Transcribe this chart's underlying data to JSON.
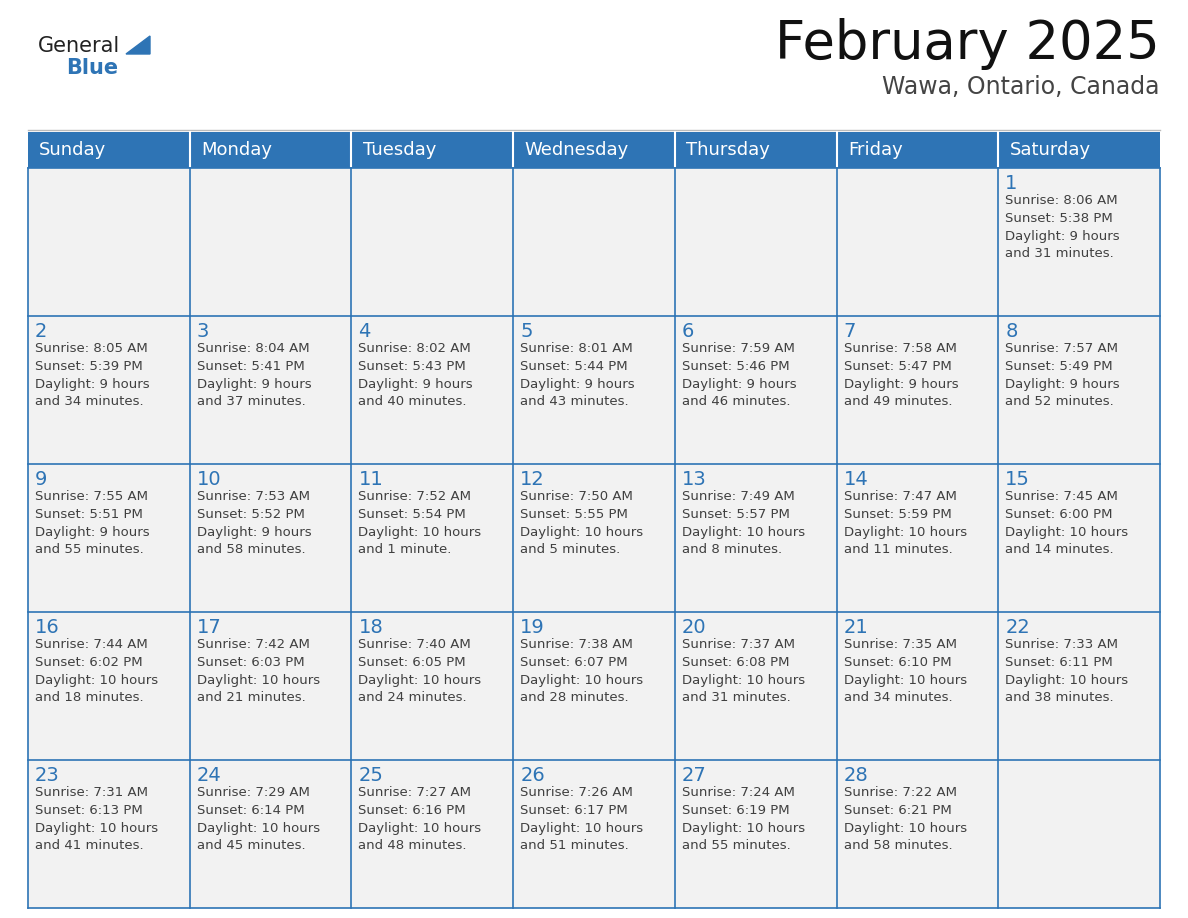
{
  "title": "February 2025",
  "subtitle": "Wawa, Ontario, Canada",
  "header_bg_color": "#2e74b5",
  "header_text_color": "#ffffff",
  "cell_bg_color": "#f2f2f2",
  "cell_border_color": "#2e74b5",
  "day_number_color": "#2e74b5",
  "detail_text_color": "#404040",
  "bg_color": "#ffffff",
  "days_of_week": [
    "Sunday",
    "Monday",
    "Tuesday",
    "Wednesday",
    "Thursday",
    "Friday",
    "Saturday"
  ],
  "calendar_data": [
    [
      null,
      null,
      null,
      null,
      null,
      null,
      {
        "day": 1,
        "sunrise": "8:06 AM",
        "sunset": "5:38 PM",
        "daylight_line1": "Daylight: 9 hours",
        "daylight_line2": "and 31 minutes."
      }
    ],
    [
      {
        "day": 2,
        "sunrise": "8:05 AM",
        "sunset": "5:39 PM",
        "daylight_line1": "Daylight: 9 hours",
        "daylight_line2": "and 34 minutes."
      },
      {
        "day": 3,
        "sunrise": "8:04 AM",
        "sunset": "5:41 PM",
        "daylight_line1": "Daylight: 9 hours",
        "daylight_line2": "and 37 minutes."
      },
      {
        "day": 4,
        "sunrise": "8:02 AM",
        "sunset": "5:43 PM",
        "daylight_line1": "Daylight: 9 hours",
        "daylight_line2": "and 40 minutes."
      },
      {
        "day": 5,
        "sunrise": "8:01 AM",
        "sunset": "5:44 PM",
        "daylight_line1": "Daylight: 9 hours",
        "daylight_line2": "and 43 minutes."
      },
      {
        "day": 6,
        "sunrise": "7:59 AM",
        "sunset": "5:46 PM",
        "daylight_line1": "Daylight: 9 hours",
        "daylight_line2": "and 46 minutes."
      },
      {
        "day": 7,
        "sunrise": "7:58 AM",
        "sunset": "5:47 PM",
        "daylight_line1": "Daylight: 9 hours",
        "daylight_line2": "and 49 minutes."
      },
      {
        "day": 8,
        "sunrise": "7:57 AM",
        "sunset": "5:49 PM",
        "daylight_line1": "Daylight: 9 hours",
        "daylight_line2": "and 52 minutes."
      }
    ],
    [
      {
        "day": 9,
        "sunrise": "7:55 AM",
        "sunset": "5:51 PM",
        "daylight_line1": "Daylight: 9 hours",
        "daylight_line2": "and 55 minutes."
      },
      {
        "day": 10,
        "sunrise": "7:53 AM",
        "sunset": "5:52 PM",
        "daylight_line1": "Daylight: 9 hours",
        "daylight_line2": "and 58 minutes."
      },
      {
        "day": 11,
        "sunrise": "7:52 AM",
        "sunset": "5:54 PM",
        "daylight_line1": "Daylight: 10 hours",
        "daylight_line2": "and 1 minute."
      },
      {
        "day": 12,
        "sunrise": "7:50 AM",
        "sunset": "5:55 PM",
        "daylight_line1": "Daylight: 10 hours",
        "daylight_line2": "and 5 minutes."
      },
      {
        "day": 13,
        "sunrise": "7:49 AM",
        "sunset": "5:57 PM",
        "daylight_line1": "Daylight: 10 hours",
        "daylight_line2": "and 8 minutes."
      },
      {
        "day": 14,
        "sunrise": "7:47 AM",
        "sunset": "5:59 PM",
        "daylight_line1": "Daylight: 10 hours",
        "daylight_line2": "and 11 minutes."
      },
      {
        "day": 15,
        "sunrise": "7:45 AM",
        "sunset": "6:00 PM",
        "daylight_line1": "Daylight: 10 hours",
        "daylight_line2": "and 14 minutes."
      }
    ],
    [
      {
        "day": 16,
        "sunrise": "7:44 AM",
        "sunset": "6:02 PM",
        "daylight_line1": "Daylight: 10 hours",
        "daylight_line2": "and 18 minutes."
      },
      {
        "day": 17,
        "sunrise": "7:42 AM",
        "sunset": "6:03 PM",
        "daylight_line1": "Daylight: 10 hours",
        "daylight_line2": "and 21 minutes."
      },
      {
        "day": 18,
        "sunrise": "7:40 AM",
        "sunset": "6:05 PM",
        "daylight_line1": "Daylight: 10 hours",
        "daylight_line2": "and 24 minutes."
      },
      {
        "day": 19,
        "sunrise": "7:38 AM",
        "sunset": "6:07 PM",
        "daylight_line1": "Daylight: 10 hours",
        "daylight_line2": "and 28 minutes."
      },
      {
        "day": 20,
        "sunrise": "7:37 AM",
        "sunset": "6:08 PM",
        "daylight_line1": "Daylight: 10 hours",
        "daylight_line2": "and 31 minutes."
      },
      {
        "day": 21,
        "sunrise": "7:35 AM",
        "sunset": "6:10 PM",
        "daylight_line1": "Daylight: 10 hours",
        "daylight_line2": "and 34 minutes."
      },
      {
        "day": 22,
        "sunrise": "7:33 AM",
        "sunset": "6:11 PM",
        "daylight_line1": "Daylight: 10 hours",
        "daylight_line2": "and 38 minutes."
      }
    ],
    [
      {
        "day": 23,
        "sunrise": "7:31 AM",
        "sunset": "6:13 PM",
        "daylight_line1": "Daylight: 10 hours",
        "daylight_line2": "and 41 minutes."
      },
      {
        "day": 24,
        "sunrise": "7:29 AM",
        "sunset": "6:14 PM",
        "daylight_line1": "Daylight: 10 hours",
        "daylight_line2": "and 45 minutes."
      },
      {
        "day": 25,
        "sunrise": "7:27 AM",
        "sunset": "6:16 PM",
        "daylight_line1": "Daylight: 10 hours",
        "daylight_line2": "and 48 minutes."
      },
      {
        "day": 26,
        "sunrise": "7:26 AM",
        "sunset": "6:17 PM",
        "daylight_line1": "Daylight: 10 hours",
        "daylight_line2": "and 51 minutes."
      },
      {
        "day": 27,
        "sunrise": "7:24 AM",
        "sunset": "6:19 PM",
        "daylight_line1": "Daylight: 10 hours",
        "daylight_line2": "and 55 minutes."
      },
      {
        "day": 28,
        "sunrise": "7:22 AM",
        "sunset": "6:21 PM",
        "daylight_line1": "Daylight: 10 hours",
        "daylight_line2": "and 58 minutes."
      },
      null
    ]
  ],
  "logo_general_color": "#222222",
  "logo_blue_color": "#2e74b5",
  "logo_triangle_color": "#2e74b5",
  "title_fontsize": 38,
  "subtitle_fontsize": 17,
  "dow_fontsize": 13,
  "day_num_fontsize": 14,
  "detail_fontsize": 9.5
}
